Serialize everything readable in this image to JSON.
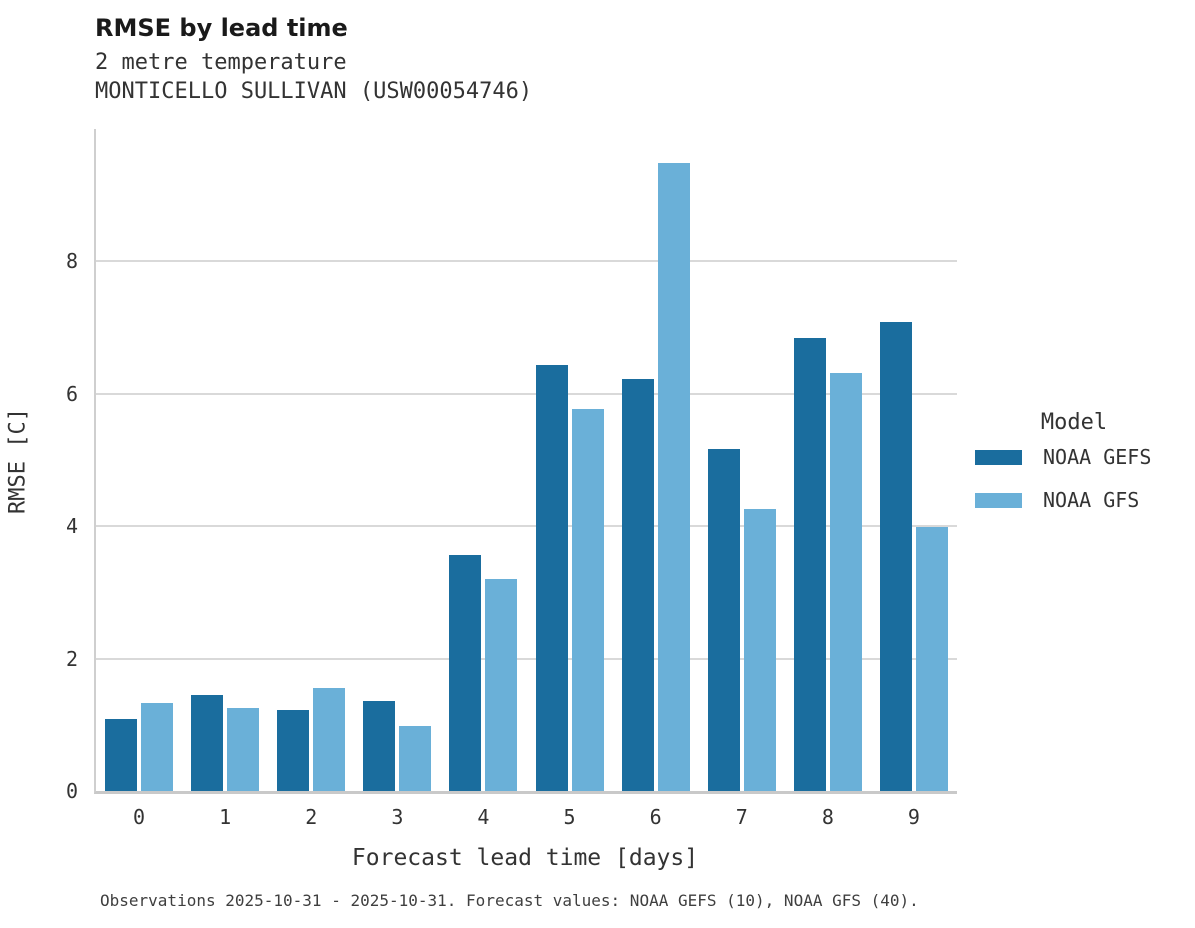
{
  "header": {
    "title": "RMSE by lead time",
    "subtitle_line1": "2 metre temperature",
    "subtitle_line2": "MONTICELLO SULLIVAN (USW00054746)"
  },
  "chart_data": {
    "type": "bar",
    "title": "RMSE by lead time",
    "subtitle": [
      "2 metre temperature",
      "MONTICELLO SULLIVAN (USW00054746)"
    ],
    "categories": [
      "0",
      "1",
      "2",
      "3",
      "4",
      "5",
      "6",
      "7",
      "8",
      "9"
    ],
    "series": [
      {
        "name": "NOAA GEFS",
        "color": "#1a6d9e",
        "values": [
          1.09,
          1.45,
          1.23,
          1.36,
          3.57,
          6.44,
          6.22,
          5.17,
          6.84,
          7.09
        ]
      },
      {
        "name": "NOAA GFS",
        "color": "#6ab0d8",
        "values": [
          1.33,
          1.25,
          1.56,
          0.98,
          3.2,
          5.77,
          9.48,
          4.26,
          6.32,
          3.99
        ]
      }
    ],
    "xlabel": "Forecast lead time [days]",
    "ylabel": "RMSE [C]",
    "ylim": [
      0,
      10
    ],
    "yticks": [
      0,
      2,
      4,
      6,
      8
    ],
    "grid": true,
    "legend_title": "Model",
    "legend_position": "right of plot, vertically centered"
  },
  "legend": {
    "title": "Model",
    "items": [
      {
        "label": "NOAA GEFS",
        "color": "#1a6d9e"
      },
      {
        "label": "NOAA GFS",
        "color": "#6ab0d8"
      }
    ]
  },
  "footer": {
    "note": "Observations 2025-10-31 - 2025-10-31. Forecast values: NOAA GEFS (10), NOAA GFS (40)."
  },
  "colors": {
    "noaa_gefs": "#1a6d9e",
    "noaa_gfs": "#6ab0d8",
    "gridline": "#d9d9d9",
    "axis_spine": "#cccccc",
    "background": "#ffffff",
    "text": "#333333"
  }
}
